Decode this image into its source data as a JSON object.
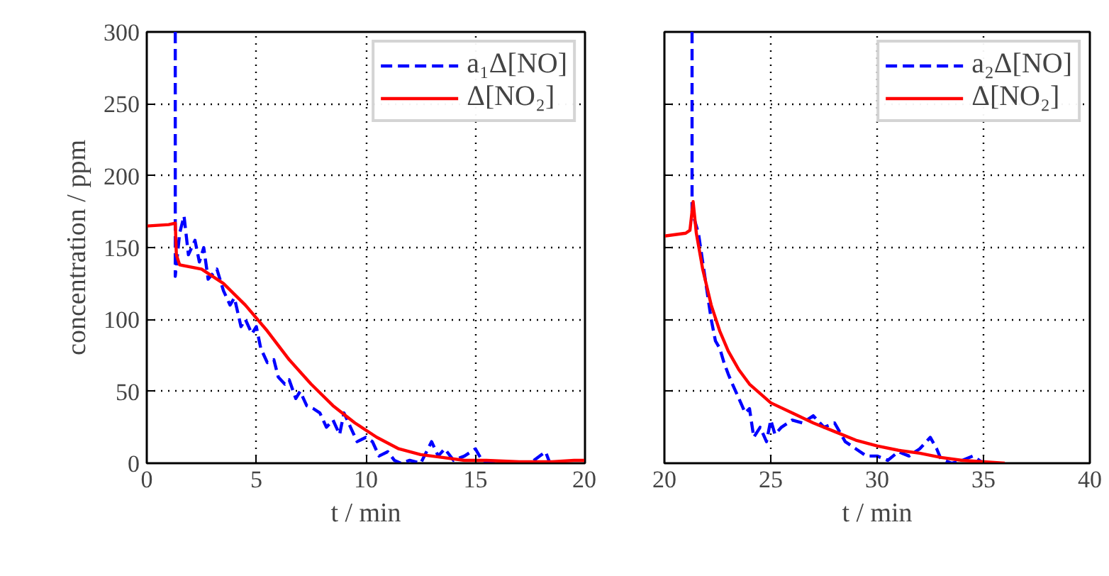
{
  "chart_data": [
    {
      "type": "line",
      "xlabel": "t / min",
      "ylabel": "concentration / ppm",
      "xlim": [
        0,
        20
      ],
      "xticks": [
        0,
        5,
        10,
        15,
        20
      ],
      "ylim": [
        0,
        300
      ],
      "yticks": [
        0,
        50,
        100,
        150,
        200,
        250,
        300
      ],
      "grid": true,
      "legend": "top right",
      "series": [
        {
          "name": "a₁Δ[NO]",
          "color": "#0000ff",
          "line_style": "dashed",
          "x": [
            1.3,
            1.3,
            1.5,
            1.7,
            1.9,
            2.2,
            2.4,
            2.6,
            2.8,
            3.2,
            3.5,
            3.8,
            4.0,
            4.3,
            4.5,
            4.8,
            5.0,
            5.2,
            5.5,
            5.8,
            6.0,
            6.3,
            6.5,
            6.8,
            7.0,
            7.3,
            7.6,
            7.9,
            8.2,
            8.5,
            8.8,
            9.0,
            9.3,
            9.6,
            10.0,
            10.3,
            10.6,
            11.0,
            11.3,
            11.6,
            12.0,
            12.5,
            13.0,
            13.3,
            13.6,
            14.0,
            14.5,
            15.0,
            15.3,
            15.8,
            16.5,
            17.5,
            18.2,
            18.4
          ],
          "values": [
            300,
            130,
            160,
            172,
            145,
            155,
            140,
            150,
            128,
            135,
            120,
            110,
            115,
            95,
            100,
            90,
            95,
            80,
            70,
            72,
            60,
            55,
            58,
            45,
            50,
            40,
            38,
            35,
            25,
            30,
            20,
            35,
            25,
            15,
            18,
            15,
            5,
            8,
            2,
            0,
            2,
            0,
            15,
            5,
            10,
            2,
            5,
            10,
            2,
            0,
            0,
            0,
            8,
            0
          ]
        },
        {
          "name": "Δ[NO₂]",
          "color": "#ff0000",
          "line_style": "solid",
          "x": [
            0,
            1.0,
            1.3,
            1.35,
            1.5,
            2.5,
            3.5,
            4.5,
            5.5,
            6.5,
            7.5,
            8.5,
            9.5,
            10.5,
            11.5,
            12.5,
            13.5,
            14.5,
            15.5,
            17.0,
            18.5,
            19.5,
            20.0
          ],
          "values": [
            165,
            166,
            167,
            145,
            138,
            135,
            125,
            110,
            92,
            72,
            55,
            40,
            28,
            18,
            10,
            6,
            4,
            2,
            2,
            1,
            1,
            2,
            2
          ]
        }
      ]
    },
    {
      "type": "line",
      "xlabel": "t / min",
      "xlim": [
        20,
        40
      ],
      "xticks": [
        20,
        25,
        30,
        35,
        40
      ],
      "ylim": [
        0,
        300
      ],
      "yticks": [
        0,
        50,
        100,
        150,
        200,
        250,
        300
      ],
      "grid": true,
      "legend": "top right",
      "tick_labels": "x",
      "series": [
        {
          "name": "a₂Δ[NO]",
          "color": "#0000ff",
          "line_style": "dashed",
          "x": [
            21.3,
            21.3,
            21.6,
            21.8,
            22.0,
            22.2,
            22.4,
            22.6,
            22.8,
            23.0,
            23.2,
            23.5,
            23.8,
            24.0,
            24.2,
            24.5,
            24.8,
            25.0,
            25.2,
            25.5,
            26.0,
            26.5,
            27.0,
            27.5,
            28.0,
            28.5,
            29.0,
            29.5,
            30.0,
            30.5,
            31.0,
            31.5,
            32.0,
            32.5,
            32.8,
            33.0,
            33.5,
            34.0,
            34.5,
            35.0
          ],
          "values": [
            300,
            175,
            160,
            140,
            120,
            100,
            85,
            80,
            70,
            62,
            55,
            45,
            35,
            38,
            18,
            25,
            15,
            30,
            20,
            25,
            30,
            28,
            33,
            25,
            28,
            15,
            10,
            5,
            5,
            2,
            8,
            5,
            10,
            18,
            10,
            3,
            0,
            2,
            5,
            0
          ]
        },
        {
          "name": "Δ[NO₂]",
          "color": "#ff0000",
          "line_style": "solid",
          "x": [
            20,
            21.0,
            21.2,
            21.35,
            21.5,
            21.8,
            22.2,
            22.6,
            23.0,
            23.5,
            24.0,
            25.0,
            26.0,
            27.0,
            28.0,
            29.0,
            30.0,
            31.0,
            32.0,
            33.0,
            34.0,
            35.0,
            36.0
          ],
          "values": [
            158,
            160,
            162,
            182,
            160,
            135,
            110,
            92,
            78,
            65,
            55,
            42,
            35,
            28,
            22,
            16,
            12,
            9,
            7,
            4,
            2,
            1,
            0
          ]
        }
      ]
    }
  ]
}
